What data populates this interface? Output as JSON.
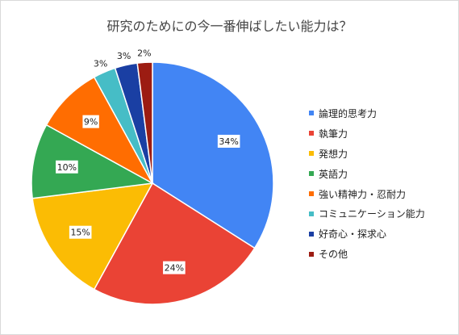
{
  "chart_data": {
    "type": "pie",
    "title": "研究のためにの今一番伸ばしたい能力は？",
    "categories": [
      "論理的思考力",
      "執筆力",
      "発想力",
      "英語力",
      "強い精神力・忍耐力",
      "コミュニケーション能力",
      "好奇心・探求心",
      "その他"
    ],
    "values": [
      34,
      24,
      15,
      10,
      9,
      3,
      3,
      2
    ],
    "value_labels": [
      "34%",
      "24%",
      "15%",
      "10%",
      "9%",
      "3%",
      "3%",
      "2%"
    ],
    "colors": [
      "#4285f4",
      "#ea4335",
      "#fbbc04",
      "#34a853",
      "#ff6d01",
      "#46bdc6",
      "#1a3fa3",
      "#9c1c12"
    ],
    "legend_position": "right"
  }
}
